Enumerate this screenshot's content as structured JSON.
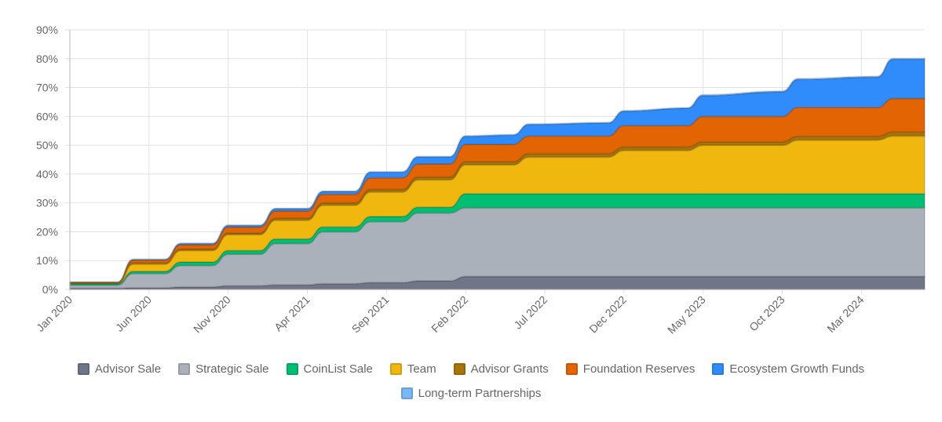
{
  "chart_data": {
    "type": "area",
    "stacked": true,
    "title": "",
    "xlabel": "",
    "ylabel": "",
    "ylim": [
      0,
      90
    ],
    "y_unit": "%",
    "y_ticks": [
      "0%",
      "10%",
      "20%",
      "30%",
      "40%",
      "50%",
      "60%",
      "70%",
      "80%",
      "90%"
    ],
    "x_ticks": [
      "Jan 2020",
      "Jun 2020",
      "Nov 2020",
      "Apr 2021",
      "Sep 2021",
      "Feb 2022",
      "Jul 2022",
      "Dec 2022",
      "May 2023",
      "Oct 2023",
      "Mar 2024"
    ],
    "x_tick_dates": [
      "2020-01",
      "2020-06",
      "2020-11",
      "2021-04",
      "2021-09",
      "2022-02",
      "2022-07",
      "2022-12",
      "2023-05",
      "2023-10",
      "2024-03"
    ],
    "xlim": [
      "2020-01",
      "2024-07"
    ],
    "grid": true,
    "legend_position": "bottom",
    "x": [
      "2020-01",
      "2020-04",
      "2020-05",
      "2020-07",
      "2020-08",
      "2020-10",
      "2020-11",
      "2021-01",
      "2021-02",
      "2021-04",
      "2021-05",
      "2021-07",
      "2021-08",
      "2021-10",
      "2021-11",
      "2022-01",
      "2022-02",
      "2022-05",
      "2022-06",
      "2022-11",
      "2022-12",
      "2023-04",
      "2023-05",
      "2023-10",
      "2023-11",
      "2024-04",
      "2024-05",
      "2024-07"
    ],
    "series": [
      {
        "name": "Advisor Sale",
        "color": "#6e7687",
        "values": [
          0.4,
          0.4,
          0.6,
          0.6,
          0.9,
          0.9,
          1.3,
          1.3,
          1.6,
          1.6,
          2.0,
          2.0,
          2.4,
          2.4,
          3.0,
          3.0,
          4.5,
          4.5,
          4.5,
          4.5,
          4.5,
          4.5,
          4.5,
          4.5,
          4.5,
          4.5,
          4.5,
          4.5
        ]
      },
      {
        "name": "Strategic Sale",
        "color": "#aab1ba",
        "values": [
          1.1,
          1.1,
          4.9,
          4.9,
          7.4,
          7.4,
          10.9,
          10.9,
          14.3,
          14.3,
          18.0,
          18.0,
          21.1,
          21.1,
          23.5,
          23.5,
          23.8,
          23.8,
          23.8,
          23.8,
          23.8,
          23.8,
          23.8,
          23.8,
          23.8,
          23.8,
          23.8,
          23.8
        ]
      },
      {
        "name": "CoinList Sale",
        "color": "#00bf72",
        "values": [
          0.5,
          0.5,
          0.8,
          0.8,
          1.2,
          1.2,
          1.3,
          1.3,
          1.6,
          1.6,
          1.7,
          1.7,
          1.8,
          1.8,
          2.0,
          2.0,
          4.9,
          4.9,
          4.9,
          4.9,
          4.9,
          4.9,
          4.9,
          4.9,
          4.9,
          4.9,
          4.9,
          4.9
        ]
      },
      {
        "name": "Team",
        "color": "#f0b70f",
        "values": [
          0,
          0,
          2.5,
          2.5,
          4.0,
          4.0,
          5.5,
          5.5,
          6.5,
          6.5,
          7.5,
          7.5,
          8.5,
          8.5,
          9.5,
          9.5,
          10.0,
          10.0,
          12.7,
          12.7,
          15.0,
          15.0,
          16.8,
          16.8,
          18.6,
          18.6,
          20.0,
          20.0
        ]
      },
      {
        "name": "Advisor Grants",
        "color": "#a77509",
        "values": [
          0.3,
          0.3,
          0.4,
          0.4,
          0.5,
          0.5,
          0.6,
          0.6,
          0.7,
          0.7,
          0.8,
          0.8,
          0.9,
          0.9,
          1.0,
          1.0,
          1.1,
          1.1,
          1.2,
          1.2,
          1.2,
          1.2,
          1.2,
          1.2,
          1.3,
          1.3,
          1.4,
          1.4
        ]
      },
      {
        "name": "Foundation Reserves",
        "color": "#e36403",
        "values": [
          0.2,
          0.2,
          1.0,
          1.0,
          1.5,
          1.5,
          2.0,
          2.0,
          2.5,
          2.5,
          3.0,
          3.0,
          4.0,
          4.0,
          4.5,
          4.5,
          6.0,
          6.0,
          6.1,
          6.1,
          7.4,
          7.4,
          8.8,
          8.8,
          10.0,
          10.0,
          11.6,
          11.6
        ]
      },
      {
        "name": "Ecosystem Growth Funds",
        "color": "#318cfb",
        "values": [
          0,
          0,
          0.2,
          0.2,
          0.4,
          0.4,
          0.6,
          0.6,
          0.8,
          0.8,
          1.0,
          1.0,
          2.0,
          2.0,
          2.5,
          2.5,
          2.8,
          3.2,
          4.0,
          4.5,
          5.0,
          6.0,
          7.2,
          8.5,
          9.7,
          10.5,
          13.6,
          13.6
        ]
      },
      {
        "name": "Long-term Partnerships",
        "color": "#78b8f5",
        "values": [
          0,
          0,
          0.1,
          0.1,
          0.1,
          0.1,
          0.1,
          0.1,
          0.1,
          0.1,
          0.1,
          0.1,
          0.1,
          0.1,
          0.1,
          0.1,
          0.2,
          0.2,
          0.2,
          0.2,
          0.2,
          0.2,
          0.3,
          0.3,
          0.3,
          0.3,
          0.3,
          0.3
        ]
      }
    ]
  }
}
